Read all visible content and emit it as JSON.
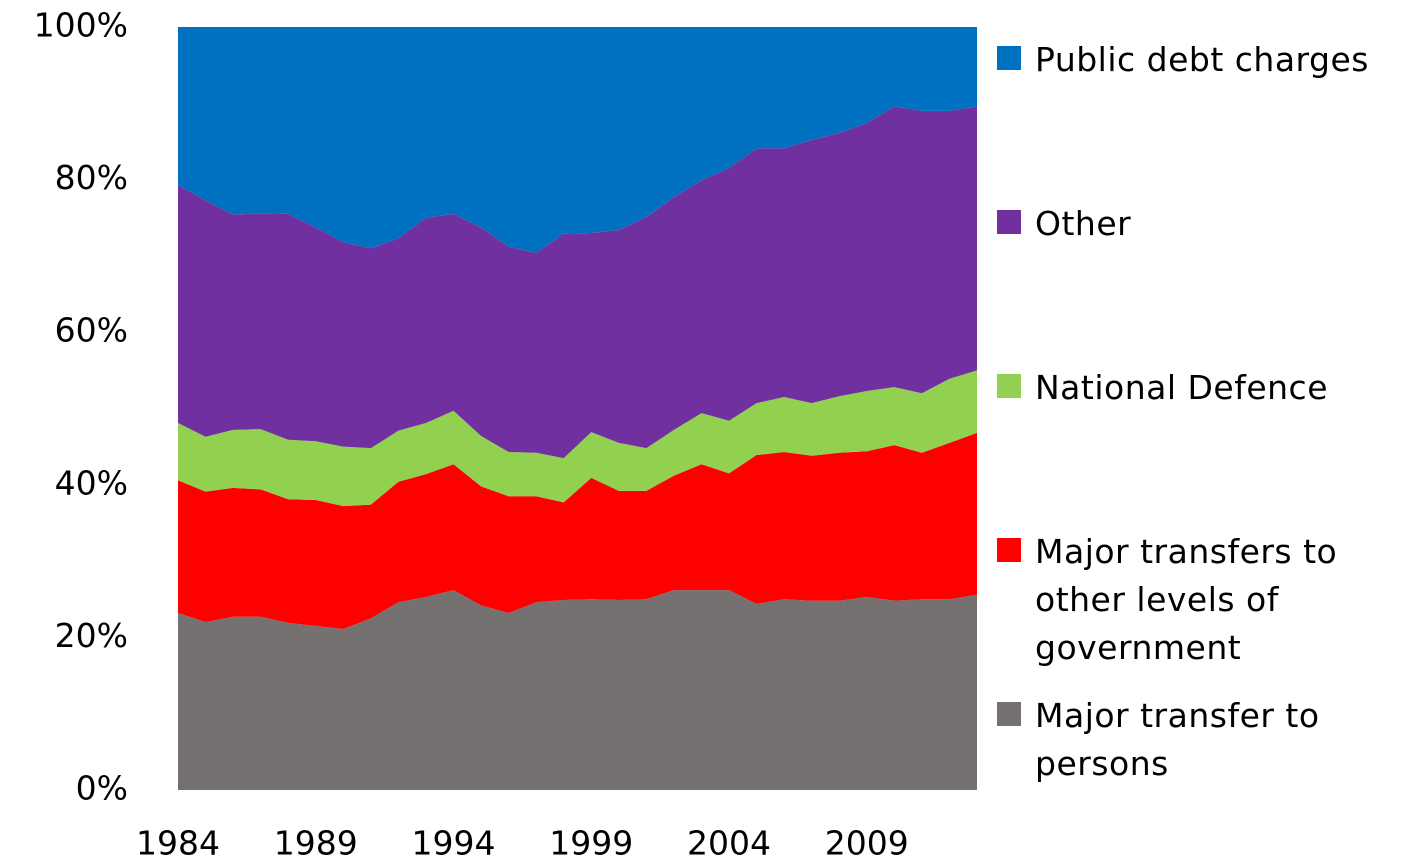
{
  "chart_data": {
    "type": "stacked_area_100",
    "x": [
      1984,
      1985,
      1986,
      1987,
      1988,
      1989,
      1990,
      1991,
      1992,
      1993,
      1994,
      1995,
      1996,
      1997,
      1998,
      1999,
      2000,
      2001,
      2002,
      2003,
      2004,
      2005,
      2006,
      2007,
      2008,
      2009,
      2010,
      2011,
      2012,
      2013
    ],
    "xlim": [
      1984,
      2013
    ],
    "xticks": [
      1984,
      1989,
      1994,
      1999,
      2004,
      2009
    ],
    "ylim": [
      0,
      100
    ],
    "yticks": [
      {
        "value": 0,
        "label": "0%"
      },
      {
        "value": 20,
        "label": "20%"
      },
      {
        "value": 40,
        "label": "40%"
      },
      {
        "value": 60,
        "label": "60%"
      },
      {
        "value": 80,
        "label": "80%"
      },
      {
        "value": 100,
        "label": "100%"
      }
    ],
    "series": [
      {
        "name": "Major transfer to persons",
        "color": "#767171",
        "values": [
          23.2,
          22.0,
          22.7,
          22.7,
          21.9,
          21.5,
          21.1,
          22.5,
          24.6,
          25.3,
          26.2,
          24.2,
          23.2,
          24.6,
          24.9,
          25.0,
          24.9,
          25.0,
          26.2,
          26.2,
          26.2,
          24.4,
          25.0,
          24.8,
          24.8,
          25.3,
          24.8,
          25.0,
          25.0,
          25.6
        ]
      },
      {
        "name": "Major transfers to other levels of government",
        "color": "#ff0000",
        "values": [
          17.4,
          17.1,
          16.9,
          16.7,
          16.2,
          16.5,
          16.1,
          14.9,
          15.8,
          16.1,
          16.5,
          15.6,
          15.3,
          13.9,
          12.8,
          15.9,
          14.3,
          14.2,
          15.0,
          16.5,
          15.3,
          19.5,
          19.3,
          19.0,
          19.4,
          19.1,
          20.4,
          19.2,
          20.5,
          21.2
        ]
      },
      {
        "name": "National Defence",
        "color": "#92d050",
        "values": [
          7.5,
          7.2,
          7.6,
          7.9,
          7.8,
          7.7,
          7.8,
          7.4,
          6.7,
          6.7,
          7.0,
          6.6,
          5.8,
          5.7,
          5.8,
          6.0,
          6.3,
          5.6,
          6.0,
          6.7,
          6.9,
          6.8,
          7.2,
          6.9,
          7.4,
          7.9,
          7.6,
          7.8,
          8.4,
          8.2
        ]
      },
      {
        "name": "Other",
        "color": "#7030a0",
        "values": [
          31.2,
          31.0,
          28.2,
          28.3,
          29.6,
          28.0,
          26.8,
          26.2,
          25.2,
          26.9,
          25.8,
          27.3,
          26.9,
          26.2,
          29.4,
          26.1,
          27.9,
          30.3,
          30.5,
          30.5,
          33.1,
          33.4,
          32.6,
          34.5,
          34.5,
          35.1,
          36.8,
          37.0,
          35.1,
          34.6
        ]
      },
      {
        "name": "Public debt charges",
        "color": "#0070c0",
        "values": [
          20.7,
          22.7,
          24.6,
          24.4,
          24.5,
          26.3,
          28.2,
          29.0,
          27.7,
          25.0,
          24.5,
          26.3,
          28.8,
          29.6,
          27.1,
          27.0,
          26.6,
          24.9,
          22.3,
          20.1,
          18.5,
          15.9,
          15.9,
          14.8,
          13.9,
          12.6,
          10.4,
          11.0,
          11.0,
          10.4
        ]
      }
    ]
  }
}
